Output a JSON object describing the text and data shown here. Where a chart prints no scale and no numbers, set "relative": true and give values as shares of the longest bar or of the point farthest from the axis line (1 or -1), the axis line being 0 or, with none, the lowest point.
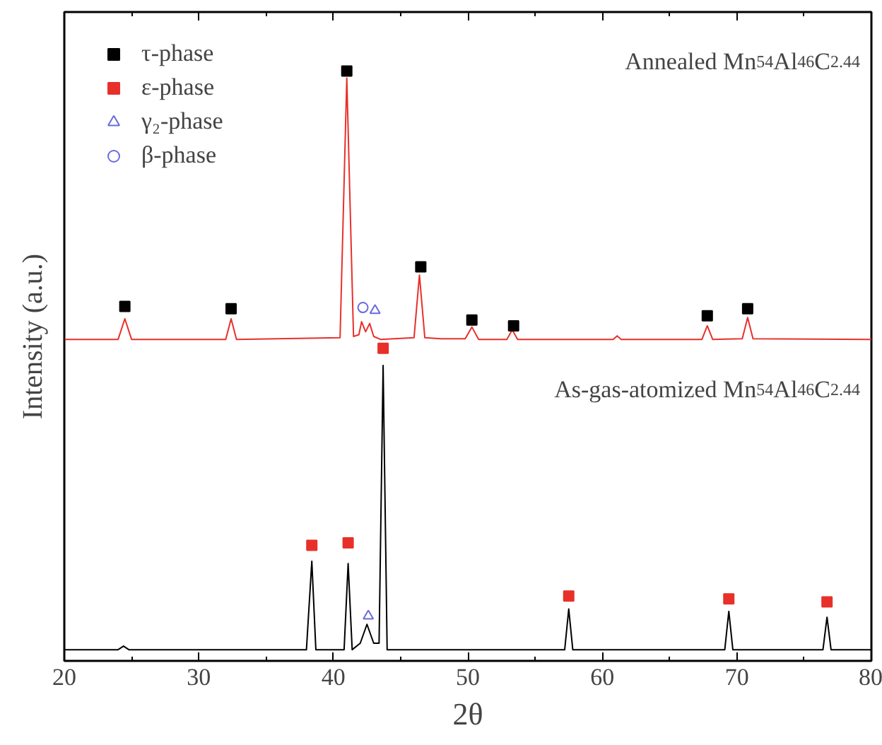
{
  "chart_data": {
    "type": "line",
    "relative": true,
    "xlabel": "2θ",
    "ylabel": "Intensity (a.u.)",
    "xlim": [
      20,
      80
    ],
    "xticks": [
      20,
      30,
      40,
      50,
      60,
      70,
      80
    ],
    "grid": false,
    "legend": "top left",
    "annotations": [
      "Annealed Mn$_{54}$Al$_{46}$C$_{2.44}$",
      "As-gas-atomized Mn$_{54}$Al$_{46}$C$_{2.44}$"
    ],
    "series": [
      {
        "color": "#e8302a",
        "x": [
          20,
          24.0,
          24.5,
          25.0,
          32.0,
          32.4,
          32.8,
          40.5,
          41.0,
          41.5,
          41.9,
          42.1,
          42.4,
          42.7,
          43.0,
          43.5,
          46.0,
          46.4,
          46.8,
          48,
          49.8,
          50.3,
          50.8,
          52.9,
          53.3,
          53.7,
          60.8,
          61.1,
          61.4,
          67.4,
          67.8,
          68.2,
          70.4,
          70.8,
          71.2,
          80
        ],
        "values": [
          0.545,
          0.545,
          0.58,
          0.545,
          0.545,
          0.58,
          0.545,
          0.548,
          0.988,
          0.55,
          0.553,
          0.575,
          0.558,
          0.572,
          0.55,
          0.545,
          0.548,
          0.654,
          0.548,
          0.546,
          0.546,
          0.566,
          0.545,
          0.545,
          0.561,
          0.545,
          0.545,
          0.551,
          0.545,
          0.545,
          0.568,
          0.545,
          0.546,
          0.582,
          0.546,
          0.545
        ]
      },
      {
        "color": "#000000",
        "x": [
          20,
          24.0,
          24.4,
          24.8,
          38.0,
          38.4,
          38.7,
          40.8,
          41.1,
          41.4,
          42.0,
          42.5,
          43.0,
          43.4,
          43.7,
          44.0,
          57.2,
          57.5,
          57.8,
          69.1,
          69.4,
          69.7,
          76.4,
          76.7,
          77.0,
          80
        ],
        "values": [
          0.019,
          0.019,
          0.025,
          0.019,
          0.019,
          0.169,
          0.019,
          0.019,
          0.165,
          0.019,
          0.03,
          0.062,
          0.03,
          0.03,
          0.501,
          0.019,
          0.019,
          0.088,
          0.019,
          0.019,
          0.084,
          0.019,
          0.019,
          0.074,
          0.019,
          0.019
        ]
      },
      {
        "type": "scatter",
        "name": "τ-phase",
        "color": "#000000",
        "marker": "square",
        "x": [
          24.5,
          32.4,
          41.0,
          46.5,
          50.3,
          53.4,
          67.8,
          70.8
        ],
        "values": [
          0.601,
          0.597,
          1.0,
          0.668,
          0.578,
          0.568,
          0.585,
          0.597
        ]
      },
      {
        "type": "scatter",
        "name": "ε-phase",
        "color": "#e8302a",
        "marker": "square",
        "x": [
          38.4,
          41.1,
          43.7,
          57.5,
          69.4,
          76.7
        ],
        "values": [
          0.196,
          0.2,
          0.53,
          0.11,
          0.105,
          0.1
        ]
      },
      {
        "type": "scatter",
        "name": "γ₂-phase",
        "color": "#6a6adf",
        "marker": "triangle",
        "x": [
          43.1,
          42.6
        ],
        "values": [
          0.594,
          0.076
        ]
      },
      {
        "type": "scatter",
        "name": "β-phase",
        "color": "#6a6adf",
        "marker": "circle",
        "x": [
          42.2
        ],
        "values": [
          0.599
        ]
      }
    ]
  }
}
